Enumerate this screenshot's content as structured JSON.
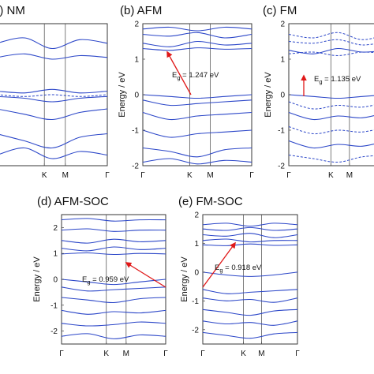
{
  "chart_data": [
    {
      "type": "line",
      "title": "(a) NM",
      "xlabel": "",
      "ylabel": "",
      "x_ticks": [
        "Γ",
        "K",
        "M",
        "Γ"
      ],
      "ylim": [
        -2,
        2
      ],
      "y_ticks": [],
      "series": [
        {
          "style": "solid",
          "x": [
            0,
            0.25,
            0.5,
            0.75,
            1
          ],
          "values": [
            1.45,
            1.6,
            1.3,
            1.55,
            1.45
          ]
        },
        {
          "style": "solid",
          "x": [
            0,
            0.25,
            0.5,
            0.75,
            1
          ],
          "values": [
            1.05,
            1.15,
            1.0,
            1.1,
            1.05
          ]
        },
        {
          "style": "solid",
          "x": [
            0,
            0.25,
            0.5,
            0.75,
            1
          ],
          "values": [
            0.1,
            0.05,
            0.15,
            0.05,
            0.1
          ]
        },
        {
          "style": "solid",
          "x": [
            0,
            0.25,
            0.5,
            0.75,
            1
          ],
          "values": [
            -0.05,
            -0.1,
            -0.2,
            -0.1,
            -0.05
          ]
        },
        {
          "style": "dashed",
          "x": [
            0,
            0.25,
            0.5,
            0.75,
            1
          ],
          "values": [
            0.0,
            -0.05,
            0.0,
            -0.05,
            0.0
          ]
        },
        {
          "style": "solid",
          "x": [
            0,
            0.25,
            0.5,
            0.75,
            1
          ],
          "values": [
            -0.4,
            -0.55,
            -0.7,
            -0.5,
            -0.4
          ]
        },
        {
          "style": "solid",
          "x": [
            0,
            0.25,
            0.5,
            0.75,
            1
          ],
          "values": [
            -1.1,
            -1.3,
            -1.5,
            -1.2,
            -1.1
          ]
        },
        {
          "style": "solid",
          "x": [
            0,
            0.25,
            0.5,
            0.75,
            1
          ],
          "values": [
            -1.7,
            -1.5,
            -1.8,
            -1.6,
            -1.7
          ]
        }
      ]
    },
    {
      "type": "line",
      "title": "(b) AFM",
      "xlabel": "",
      "ylabel": "Energy / eV",
      "x_ticks": [
        "Γ",
        "K",
        "M",
        "Γ"
      ],
      "ylim": [
        -2,
        2
      ],
      "y_ticks": [
        "2",
        "1",
        "0",
        "-1",
        "-2"
      ],
      "annotation": "E",
      "annotation_sub": "g",
      "annotation_value": " = 1.247 eV",
      "series": [
        {
          "style": "solid",
          "x": [
            0,
            0.25,
            0.5,
            0.75,
            1
          ],
          "values": [
            1.85,
            1.9,
            1.8,
            1.9,
            1.85
          ]
        },
        {
          "style": "solid",
          "x": [
            0,
            0.25,
            0.5,
            0.75,
            1
          ],
          "values": [
            1.7,
            1.65,
            1.75,
            1.6,
            1.7
          ]
        },
        {
          "style": "solid",
          "x": [
            0,
            0.25,
            0.5,
            0.75,
            1
          ],
          "values": [
            1.45,
            1.35,
            1.5,
            1.4,
            1.45
          ]
        },
        {
          "style": "solid",
          "x": [
            0,
            0.25,
            0.5,
            0.75,
            1
          ],
          "values": [
            1.3,
            1.25,
            1.32,
            1.28,
            1.3
          ]
        },
        {
          "style": "solid",
          "x": [
            0,
            0.25,
            0.5,
            0.75,
            1
          ],
          "values": [
            0.0,
            -0.05,
            -0.1,
            -0.05,
            0.0
          ]
        },
        {
          "style": "solid",
          "x": [
            0,
            0.25,
            0.5,
            0.75,
            1
          ],
          "values": [
            -0.15,
            -0.3,
            -0.25,
            -0.2,
            -0.15
          ]
        },
        {
          "style": "solid",
          "x": [
            0,
            0.25,
            0.5,
            0.75,
            1
          ],
          "values": [
            -0.5,
            -0.7,
            -0.6,
            -0.55,
            -0.5
          ]
        },
        {
          "style": "solid",
          "x": [
            0,
            0.25,
            0.5,
            0.75,
            1
          ],
          "values": [
            -1.0,
            -1.2,
            -1.1,
            -1.05,
            -1.0
          ]
        },
        {
          "style": "solid",
          "x": [
            0,
            0.25,
            0.5,
            0.75,
            1
          ],
          "values": [
            -1.5,
            -1.6,
            -1.75,
            -1.55,
            -1.5
          ]
        },
        {
          "style": "solid",
          "x": [
            0,
            0.25,
            0.5,
            0.75,
            1
          ],
          "values": [
            -1.9,
            -1.8,
            -1.95,
            -1.85,
            -1.9
          ]
        }
      ]
    },
    {
      "type": "line",
      "title": "(c) FM",
      "xlabel": "",
      "ylabel": "Energy / eV",
      "x_ticks": [
        "Γ",
        "K",
        "M"
      ],
      "ylim": [
        -2,
        2
      ],
      "y_ticks": [
        "2",
        "1",
        "0",
        "-1",
        "-2"
      ],
      "annotation": "E",
      "annotation_sub": "g",
      "annotation_value": " = 1.135 eV",
      "series": [
        {
          "style": "dashed",
          "x": [
            0,
            0.25,
            0.5,
            0.75,
            1
          ],
          "values": [
            1.7,
            1.6,
            1.75,
            1.55,
            1.7
          ]
        },
        {
          "style": "dashed",
          "x": [
            0,
            0.25,
            0.5,
            0.75,
            1
          ],
          "values": [
            1.5,
            1.45,
            1.55,
            1.4,
            1.5
          ]
        },
        {
          "style": "solid",
          "x": [
            0,
            0.25,
            0.5,
            0.75,
            1
          ],
          "values": [
            1.25,
            1.15,
            1.3,
            1.2,
            1.25
          ]
        },
        {
          "style": "dashed",
          "x": [
            0,
            0.25,
            0.5,
            0.75,
            1
          ],
          "values": [
            1.15,
            1.2,
            1.1,
            1.2,
            1.15
          ]
        },
        {
          "style": "solid",
          "x": [
            0,
            0.25,
            0.5,
            0.75,
            1
          ],
          "values": [
            0.0,
            -0.05,
            -0.1,
            -0.05,
            0.0
          ]
        },
        {
          "style": "dashed",
          "x": [
            0,
            0.25,
            0.5,
            0.75,
            1
          ],
          "values": [
            -0.2,
            -0.4,
            -0.3,
            -0.35,
            -0.2
          ]
        },
        {
          "style": "solid",
          "x": [
            0,
            0.25,
            0.5,
            0.75,
            1
          ],
          "values": [
            -0.5,
            -0.7,
            -0.6,
            -0.65,
            -0.5
          ]
        },
        {
          "style": "dashed",
          "x": [
            0,
            0.25,
            0.5,
            0.75,
            1
          ],
          "values": [
            -0.9,
            -1.1,
            -1.0,
            -1.05,
            -0.9
          ]
        },
        {
          "style": "solid",
          "x": [
            0,
            0.25,
            0.5,
            0.75,
            1
          ],
          "values": [
            -1.3,
            -1.5,
            -1.4,
            -1.45,
            -1.3
          ]
        },
        {
          "style": "dashed",
          "x": [
            0,
            0.25,
            0.5,
            0.75,
            1
          ],
          "values": [
            -1.7,
            -1.8,
            -1.9,
            -1.75,
            -1.7
          ]
        }
      ]
    },
    {
      "type": "line",
      "title": "(d) AFM-SOC",
      "xlabel": "",
      "ylabel": "Energy / eV",
      "x_ticks": [
        "Γ",
        "K",
        "M",
        "Γ"
      ],
      "ylim": [
        -2.5,
        2.5
      ],
      "y_ticks": [
        "2",
        "1",
        "0",
        "-1",
        "-2"
      ],
      "annotation": "E",
      "annotation_sub": "g",
      "annotation_value": " = 0.959 eV",
      "series": [
        {
          "style": "solid",
          "x": [
            0,
            0.25,
            0.5,
            0.75,
            1
          ],
          "values": [
            2.3,
            2.35,
            2.25,
            2.3,
            2.3
          ]
        },
        {
          "style": "solid",
          "x": [
            0,
            0.25,
            0.5,
            0.75,
            1
          ],
          "values": [
            1.9,
            1.95,
            1.85,
            1.9,
            1.9
          ]
        },
        {
          "style": "solid",
          "x": [
            0,
            0.25,
            0.5,
            0.75,
            1
          ],
          "values": [
            1.5,
            1.4,
            1.55,
            1.45,
            1.5
          ]
        },
        {
          "style": "solid",
          "x": [
            0,
            0.25,
            0.5,
            0.75,
            1
          ],
          "values": [
            1.2,
            1.1,
            1.25,
            1.15,
            1.2
          ]
        },
        {
          "style": "solid",
          "x": [
            0,
            0.25,
            0.5,
            0.75,
            1
          ],
          "values": [
            0.98,
            1.02,
            0.96,
            1.0,
            0.98
          ]
        },
        {
          "style": "solid",
          "x": [
            0,
            0.25,
            0.5,
            0.75,
            1
          ],
          "values": [
            0.0,
            -0.1,
            -0.2,
            -0.1,
            0.0
          ]
        },
        {
          "style": "solid",
          "x": [
            0,
            0.25,
            0.5,
            0.75,
            1
          ],
          "values": [
            -0.3,
            -0.45,
            -0.4,
            -0.35,
            -0.3
          ]
        },
        {
          "style": "solid",
          "x": [
            0,
            0.25,
            0.5,
            0.75,
            1
          ],
          "values": [
            -0.7,
            -0.8,
            -0.9,
            -0.75,
            -0.7
          ]
        },
        {
          "style": "solid",
          "x": [
            0,
            0.25,
            0.5,
            0.75,
            1
          ],
          "values": [
            -1.2,
            -1.35,
            -1.25,
            -1.3,
            -1.2
          ]
        },
        {
          "style": "solid",
          "x": [
            0,
            0.25,
            0.5,
            0.75,
            1
          ],
          "values": [
            -1.7,
            -1.8,
            -1.75,
            -1.65,
            -1.7
          ]
        },
        {
          "style": "solid",
          "x": [
            0,
            0.25,
            0.5,
            0.75,
            1
          ],
          "values": [
            -2.2,
            -2.1,
            -2.3,
            -2.15,
            -2.2
          ]
        }
      ]
    },
    {
      "type": "line",
      "title": "(e) FM-SOC",
      "xlabel": "",
      "ylabel": "Energy / eV",
      "x_ticks": [
        "Γ",
        "K",
        "M",
        "Γ"
      ],
      "ylim": [
        -2.5,
        2.0
      ],
      "y_ticks": [
        "2",
        "1",
        "0",
        "-1",
        "-2"
      ],
      "annotation": "E",
      "annotation_sub": "g",
      "annotation_value": " = 0.918 eV",
      "series": [
        {
          "style": "solid",
          "x": [
            0,
            0.25,
            0.5,
            0.75,
            1
          ],
          "values": [
            1.65,
            1.7,
            1.6,
            1.7,
            1.65
          ]
        },
        {
          "style": "solid",
          "x": [
            0,
            0.25,
            0.5,
            0.75,
            1
          ],
          "values": [
            1.5,
            1.45,
            1.55,
            1.45,
            1.5
          ]
        },
        {
          "style": "solid",
          "x": [
            0,
            0.25,
            0.5,
            0.75,
            1
          ],
          "values": [
            1.3,
            1.25,
            1.35,
            1.2,
            1.3
          ]
        },
        {
          "style": "solid",
          "x": [
            0,
            0.25,
            0.5,
            0.75,
            1
          ],
          "values": [
            1.1,
            1.15,
            1.05,
            1.1,
            1.1
          ]
        },
        {
          "style": "solid",
          "x": [
            0,
            0.25,
            0.5,
            0.75,
            1
          ],
          "values": [
            0.95,
            0.92,
            0.98,
            0.93,
            0.95
          ]
        },
        {
          "style": "solid",
          "x": [
            0,
            0.25,
            0.5,
            0.75,
            1
          ],
          "values": [
            0.0,
            -0.1,
            -0.15,
            -0.1,
            0.0
          ]
        },
        {
          "style": "solid",
          "x": [
            0,
            0.25,
            0.5,
            0.75,
            1
          ],
          "values": [
            -0.6,
            -0.75,
            -0.7,
            -0.65,
            -0.6
          ]
        },
        {
          "style": "solid",
          "x": [
            0,
            0.25,
            0.5,
            0.75,
            1
          ],
          "values": [
            -0.9,
            -1.0,
            -0.95,
            -1.05,
            -0.9
          ]
        },
        {
          "style": "solid",
          "x": [
            0,
            0.25,
            0.5,
            0.75,
            1
          ],
          "values": [
            -1.3,
            -1.4,
            -1.5,
            -1.35,
            -1.3
          ]
        },
        {
          "style": "solid",
          "x": [
            0,
            0.25,
            0.5,
            0.75,
            1
          ],
          "values": [
            -1.7,
            -1.8,
            -1.75,
            -1.85,
            -1.7
          ]
        },
        {
          "style": "solid",
          "x": [
            0,
            0.25,
            0.5,
            0.75,
            1
          ],
          "values": [
            -2.1,
            -2.2,
            -2.3,
            -2.15,
            -2.1
          ]
        }
      ]
    }
  ]
}
